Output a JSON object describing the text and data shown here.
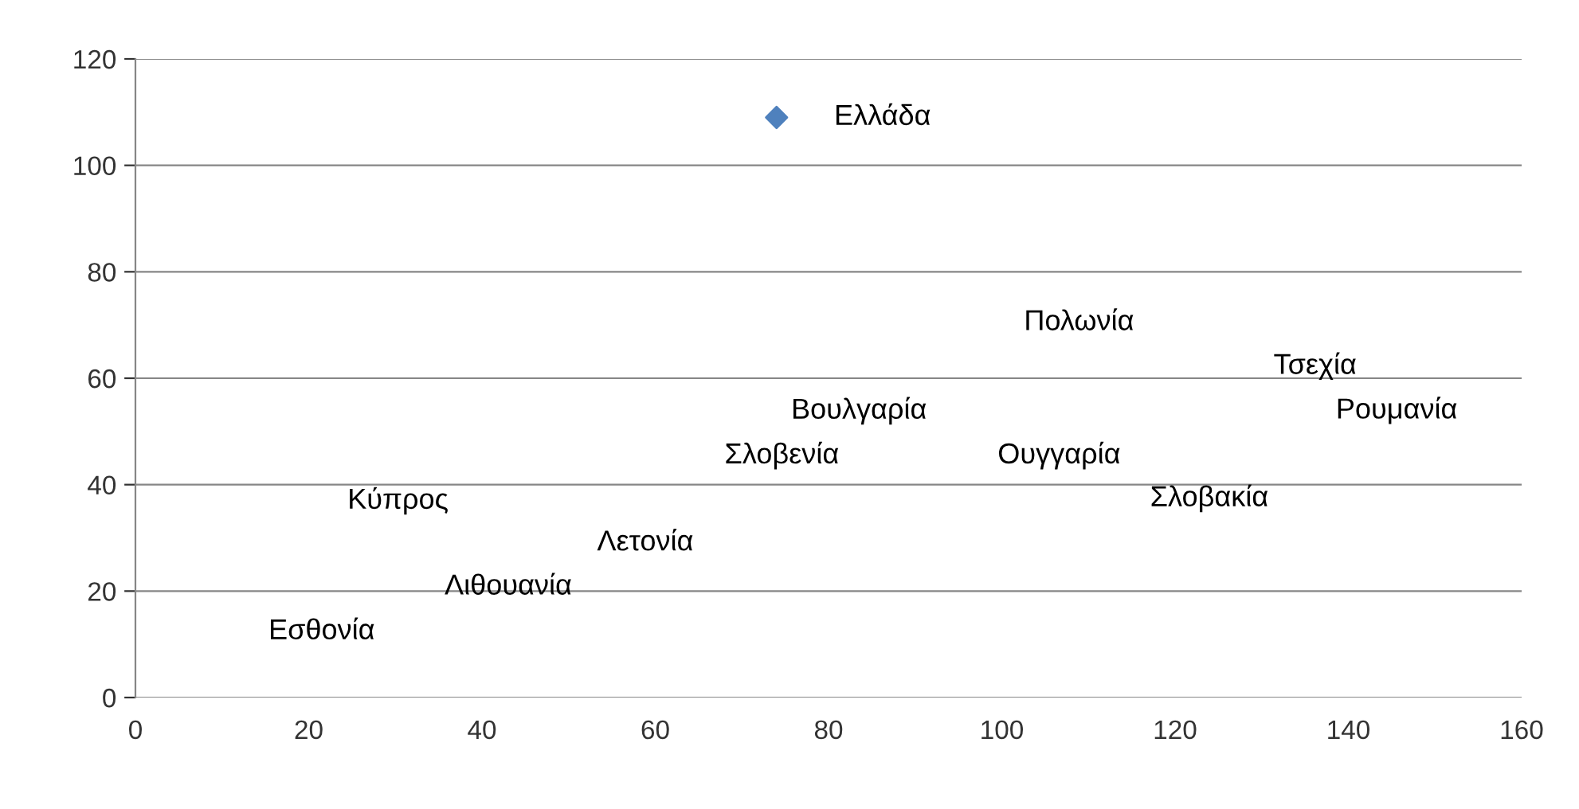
{
  "chart_data": {
    "type": "scatter",
    "xlim": [
      0,
      160
    ],
    "xticks": [
      0,
      20,
      40,
      60,
      80,
      100,
      120,
      140,
      160
    ],
    "ylim": [
      0,
      120
    ],
    "yticks": [
      0,
      20,
      40,
      60,
      80,
      100,
      120
    ],
    "grid": "y",
    "marker": "diamond",
    "series": [
      {
        "x": [
          74
        ],
        "values": [
          109
        ],
        "color": "#4f81bd"
      }
    ],
    "annotations": [
      {
        "text": "Ελλάδα",
        "x": 74,
        "y": 109
      },
      "Κύπρος",
      "Λετονία",
      "Λιθουανία",
      "Εσθονία",
      "Σλοβενία",
      "Βουλγαρία",
      "Πολωνία",
      "Τσεχία",
      "Ρουμανία",
      "Ουγγαρία",
      "Σλοβακία"
    ]
  }
}
